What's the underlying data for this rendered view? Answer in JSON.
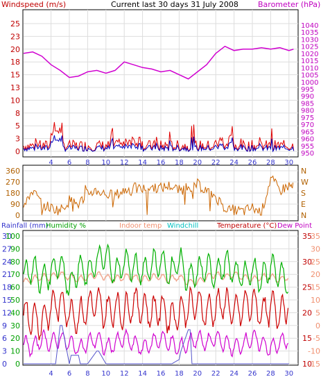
{
  "header": {
    "title": "Current last 30 days 31 July 2008",
    "windspeed_label": "Windspeed (m/s)",
    "barometer_label": "Barometer (hPa)"
  },
  "legend3": {
    "rainfall": "Rainfall (mm)",
    "humidity": "Humidity %",
    "indoor": "Indoor temp",
    "windchill": "Windchill",
    "temperature": "Temperature (°C)",
    "dewpoint": "Dew Point"
  },
  "colors": {
    "barometer": "#d000d0",
    "windgust": "#e00000",
    "windavg": "#0000c0",
    "direction": "#cc6600",
    "rainfall": "#5555cc",
    "humidity": "#00b000",
    "indoor": "#f0a890",
    "windchill": "#00c0c0",
    "temperature": "#cc0000",
    "dewpoint": "#d000d0",
    "axis_left": "#c00000",
    "axis_right": "#c000c0",
    "dir_axis": "#b06000",
    "rain_axis": "#3333cc",
    "hum_axis": "#00a000",
    "temp_axis_right": "#c00000",
    "chill_axis": "#f09070"
  },
  "chart_data": [
    {
      "type": "line",
      "title": "Current last 30 days 31 July 2008",
      "left_axis": {
        "label": "Windspeed (m/s)",
        "ticks": [
          "25",
          "23",
          "20",
          "18",
          "15",
          "13",
          "10",
          "8",
          "5",
          "3",
          "0"
        ]
      },
      "right_axis": {
        "label": "Barometer (hPa)",
        "ticks": [
          "1040",
          "1035",
          "1030",
          "1025",
          "1020",
          "1015",
          "1010",
          "1005",
          "1000",
          "995",
          "990",
          "985",
          "980",
          "975",
          "970",
          "965",
          "960",
          "955",
          "950"
        ]
      },
      "x_ticks": [
        "4",
        "6",
        "8",
        "10",
        "12",
        "14",
        "16",
        "18",
        "20",
        "22",
        "24",
        "26",
        "28",
        "30"
      ],
      "series": [
        {
          "name": "Barometer (hPa)",
          "x": [
            1,
            2,
            3,
            4,
            5,
            6,
            7,
            8,
            9,
            10,
            11,
            12,
            13,
            14,
            15,
            16,
            17,
            18,
            19,
            20,
            21,
            22,
            23,
            24,
            25,
            26,
            27,
            28,
            29,
            30,
            30.5
          ],
          "values": [
            1020,
            1021,
            1018,
            1012,
            1008,
            1003,
            1004,
            1007,
            1008,
            1006,
            1008,
            1014,
            1012,
            1010,
            1009,
            1007,
            1008,
            1005,
            1002,
            1007,
            1012,
            1020,
            1025,
            1022,
            1023,
            1023,
            1024,
            1023,
            1024,
            1022,
            1023
          ]
        }
      ]
    },
    {
      "type": "line",
      "left_axis": {
        "ticks": [
          "360",
          "270",
          "180",
          "90",
          "0"
        ]
      },
      "right_axis": {
        "ticks": [
          "N",
          "W",
          "S",
          "E",
          "N"
        ]
      },
      "series": [
        {
          "name": "Wind direction",
          "x": [
            1,
            2,
            3,
            4,
            5,
            6,
            7,
            8,
            9,
            10,
            11,
            12,
            13,
            14,
            15,
            16,
            17,
            18,
            19,
            20,
            21,
            22,
            23,
            24,
            25,
            26,
            27,
            28,
            29,
            30,
            30.5
          ],
          "values": [
            100,
            200,
            90,
            60,
            40,
            120,
            90,
            180,
            200,
            170,
            160,
            200,
            220,
            210,
            230,
            220,
            240,
            200,
            230,
            250,
            200,
            150,
            60,
            40,
            30,
            60,
            20,
            300,
            200,
            240,
            220
          ]
        }
      ]
    },
    {
      "type": "line",
      "legend": [
        "Rainfall (mm)",
        "Humidity %",
        "Indoor temp",
        "Windchill",
        "Temperature (°C)",
        "Dew Point"
      ],
      "left_axes": {
        "rainfall": [
          "30",
          "27",
          "24",
          "21",
          "18",
          "15",
          "12",
          "9",
          "6",
          "3",
          "0"
        ],
        "humidity": [
          "100",
          "90",
          "80",
          "70",
          "60",
          "50",
          "40",
          "30",
          "20",
          "10",
          "0"
        ]
      },
      "right_axes": {
        "temperature": [
          "35",
          "30",
          "25",
          "20",
          "15",
          "10"
        ],
        "indoor_windchill": [
          "35",
          "30",
          "25",
          "20",
          "15",
          "10",
          "5",
          "0",
          "-5",
          "-10",
          "-15"
        ]
      },
      "series": [
        {
          "name": "Indoor temp",
          "values": [
            26,
            26.5,
            27,
            27,
            27.5,
            27,
            26.5,
            27,
            27.5,
            27,
            26.5,
            27,
            27,
            26.5,
            27,
            27,
            26.5,
            27,
            26,
            26,
            27,
            27.5,
            27,
            27.5,
            27,
            26.5,
            27,
            27,
            26.5,
            27
          ]
        },
        {
          "name": "Humidity %",
          "values": [
            70,
            75,
            65,
            72,
            80,
            60,
            75,
            70,
            80,
            85,
            70,
            80,
            75,
            72,
            78,
            80,
            70,
            82,
            65,
            72,
            75,
            70,
            78,
            72,
            68,
            74,
            66,
            76,
            70,
            60
          ]
        },
        {
          "name": "Temperature (°C)",
          "values": [
            20,
            19,
            18,
            21,
            22,
            20,
            19,
            21,
            22,
            20,
            21,
            20,
            22,
            21,
            20,
            21,
            19,
            20,
            21,
            22,
            20,
            21,
            22,
            20,
            21,
            22,
            20,
            21,
            20,
            22
          ]
        },
        {
          "name": "Dew Point",
          "values": [
            14,
            13,
            15,
            14,
            15,
            14,
            13,
            14,
            15,
            13,
            14,
            15,
            14,
            13,
            14,
            15,
            14,
            13,
            14,
            15,
            14,
            15,
            14,
            13,
            14,
            15,
            14,
            13,
            14,
            15
          ]
        },
        {
          "name": "Rainfall (mm)",
          "x": [
            1,
            4.5,
            5,
            5.2,
            6,
            6.2,
            7,
            7.2,
            8,
            9,
            9.2,
            10,
            10.5,
            12,
            13,
            14,
            15,
            16,
            17,
            17.2,
            18,
            18.2,
            19,
            19.2,
            19.4,
            20,
            22,
            24,
            26,
            28,
            30
          ],
          "values": [
            0,
            0,
            9,
            9,
            0,
            2,
            2,
            0,
            0,
            3,
            3,
            0,
            0,
            0,
            0,
            0,
            0,
            0,
            0,
            0,
            1,
            3,
            8,
            8,
            0,
            0,
            0,
            0,
            0,
            0,
            0
          ]
        }
      ]
    }
  ]
}
